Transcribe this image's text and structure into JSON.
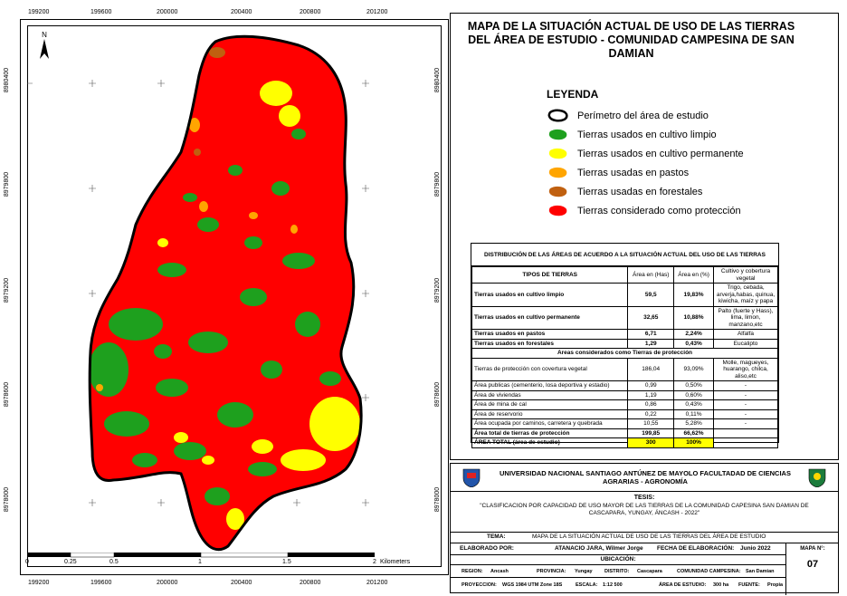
{
  "map": {
    "x_ticks": [
      "199200",
      "199600",
      "200000",
      "200400",
      "200800",
      "201200"
    ],
    "y_ticks": [
      "8980400",
      "8979800",
      "8979200",
      "8978600",
      "8978000"
    ],
    "north_label": "N",
    "scale_labels": [
      "0",
      "0.25",
      "0.5",
      "1",
      "1.5",
      "2"
    ],
    "scale_unit": "Kilometers"
  },
  "title": "MAPA DE LA SITUACIÓN ACTUAL DE USO DE LAS TIERRAS DEL ÁREA DE ESTUDIO - COMUNIDAD CAMPESINA DE SAN DAMIAN",
  "legend": {
    "title": "LEYENDA",
    "items": [
      {
        "label": "Perímetro del área de estudio",
        "color": "#ffffff"
      },
      {
        "label": "Tierras usados en cultivo limpio",
        "color": "#1ea01e"
      },
      {
        "label": "Tierras usados en cultivo permanente",
        "color": "#ffff00"
      },
      {
        "label": "Tierras usadas en  pastos",
        "color": "#ffa500"
      },
      {
        "label": "Tierras usadas en forestales",
        "color": "#c06010"
      },
      {
        "label": "Tierras considerado como protección",
        "color": "#ff0000"
      }
    ]
  },
  "table": {
    "title": "DISTRIBUCIÓN DE LAS ÁREAS DE ACUERDO A LA SITUACIÓN ACTUAL DEL USO DE LAS TIERRAS",
    "headers": [
      "TIPOS DE TIERRAS",
      "Área en (Has)",
      "Área en (%)",
      "Cultivo y cobertura vegetal"
    ],
    "rows": [
      [
        "Tierras usados en cultivo limpio",
        "59,5",
        "19,83%",
        "Trigo, cebada, arverja,habas, quinua, kiwicha, maíz y papa"
      ],
      [
        "Tierras usados en cultivo permanente",
        "32,65",
        "10,88%",
        "Palto (fuerte y Hass), lima, limon, manzano,etc"
      ],
      [
        "Tierras usados en  pastos",
        "6,71",
        "2,24%",
        "Alfalfa"
      ],
      [
        "Tierras usados en forestales",
        "1,29",
        "0,43%",
        "Eucalipto"
      ]
    ],
    "section_label": "Areas considerados como Tierras de protección",
    "prot_rows": [
      [
        "Tierras de protección con covertura vegetal",
        "186,04",
        "93,09%",
        "Molle, magueyes, huarango, chilca, aliso,etc"
      ],
      [
        "Área publicas (cementerio, losa deportiva y estadio)",
        "0,99",
        "0,50%",
        "-"
      ],
      [
        "Área de viviendas",
        "1,19",
        "0,60%",
        "-"
      ],
      [
        "Área de mina de cal",
        "0,86",
        "0,43%",
        "-"
      ],
      [
        "Área de reservorio",
        "0,22",
        "0,11%",
        "-"
      ],
      [
        "Área ocupada por caminos, carretera y quebrada",
        "10,55",
        "5,28%",
        "-"
      ]
    ],
    "total_prot": [
      "Área  total de tierras de protección",
      "199,85",
      "66,62%",
      ""
    ],
    "total": [
      "ÁREA TOTAL (área de estudio)",
      "300",
      "100%",
      ""
    ]
  },
  "info": {
    "university": "UNIVERSIDAD NACIONAL  SANTIAGO ANTÚNEZ DE MAYOLO FACULTADAD DE CIENCIAS AGRARIAS - AGRONOMÍA",
    "tesis_label": "TESIS:",
    "tesis_text": "\"CLASIFICACION POR CAPACIDAD  DE USO MAYOR DE LAS TIERRAS DE LA COMUNIDAD CAPESINA SAN DAMIAN DE CASCAPARA, YUNGAY, ÁNCASH - 2022\"",
    "tema_label": "TEMA:",
    "tema_text": "MAPA DE LA SITUACIÓN ACTUAL  DE  USO DE LAS TIERRAS DEL ÁREA DE ESTUDIO",
    "elaborado_label": "ELABORADO POR:",
    "elaborado_text": "ATANACIO JARA,  Wilmer Jorge",
    "fecha_label": "FECHA DE ELABORACIÓN:",
    "fecha_text": "Junio 2022",
    "mapa_label": "MAPA N°:",
    "mapa_num": "07",
    "ubicacion_label": "UBICACIÓN:",
    "region_label": "REGION:",
    "region": "Ancash",
    "provincia_label": "PROVINCIA:",
    "provincia": "Yungay",
    "distrito_label": "DISTRITO:",
    "distrito": "Cascapara",
    "comunidad_label": "COMUNIDAD CAMPESINA:",
    "comunidad": "San Damian",
    "proyeccion_label": "PROYECCION:",
    "proyeccion": "WGS 1984 UTM Zone 18S",
    "escala_label": "ESCALA:",
    "escala": "1:12 500",
    "area_label": "ÁREA DE ESTUDIO:",
    "area": "300 ha",
    "fuente_label": "FUENTE:",
    "fuente": "Propia"
  }
}
